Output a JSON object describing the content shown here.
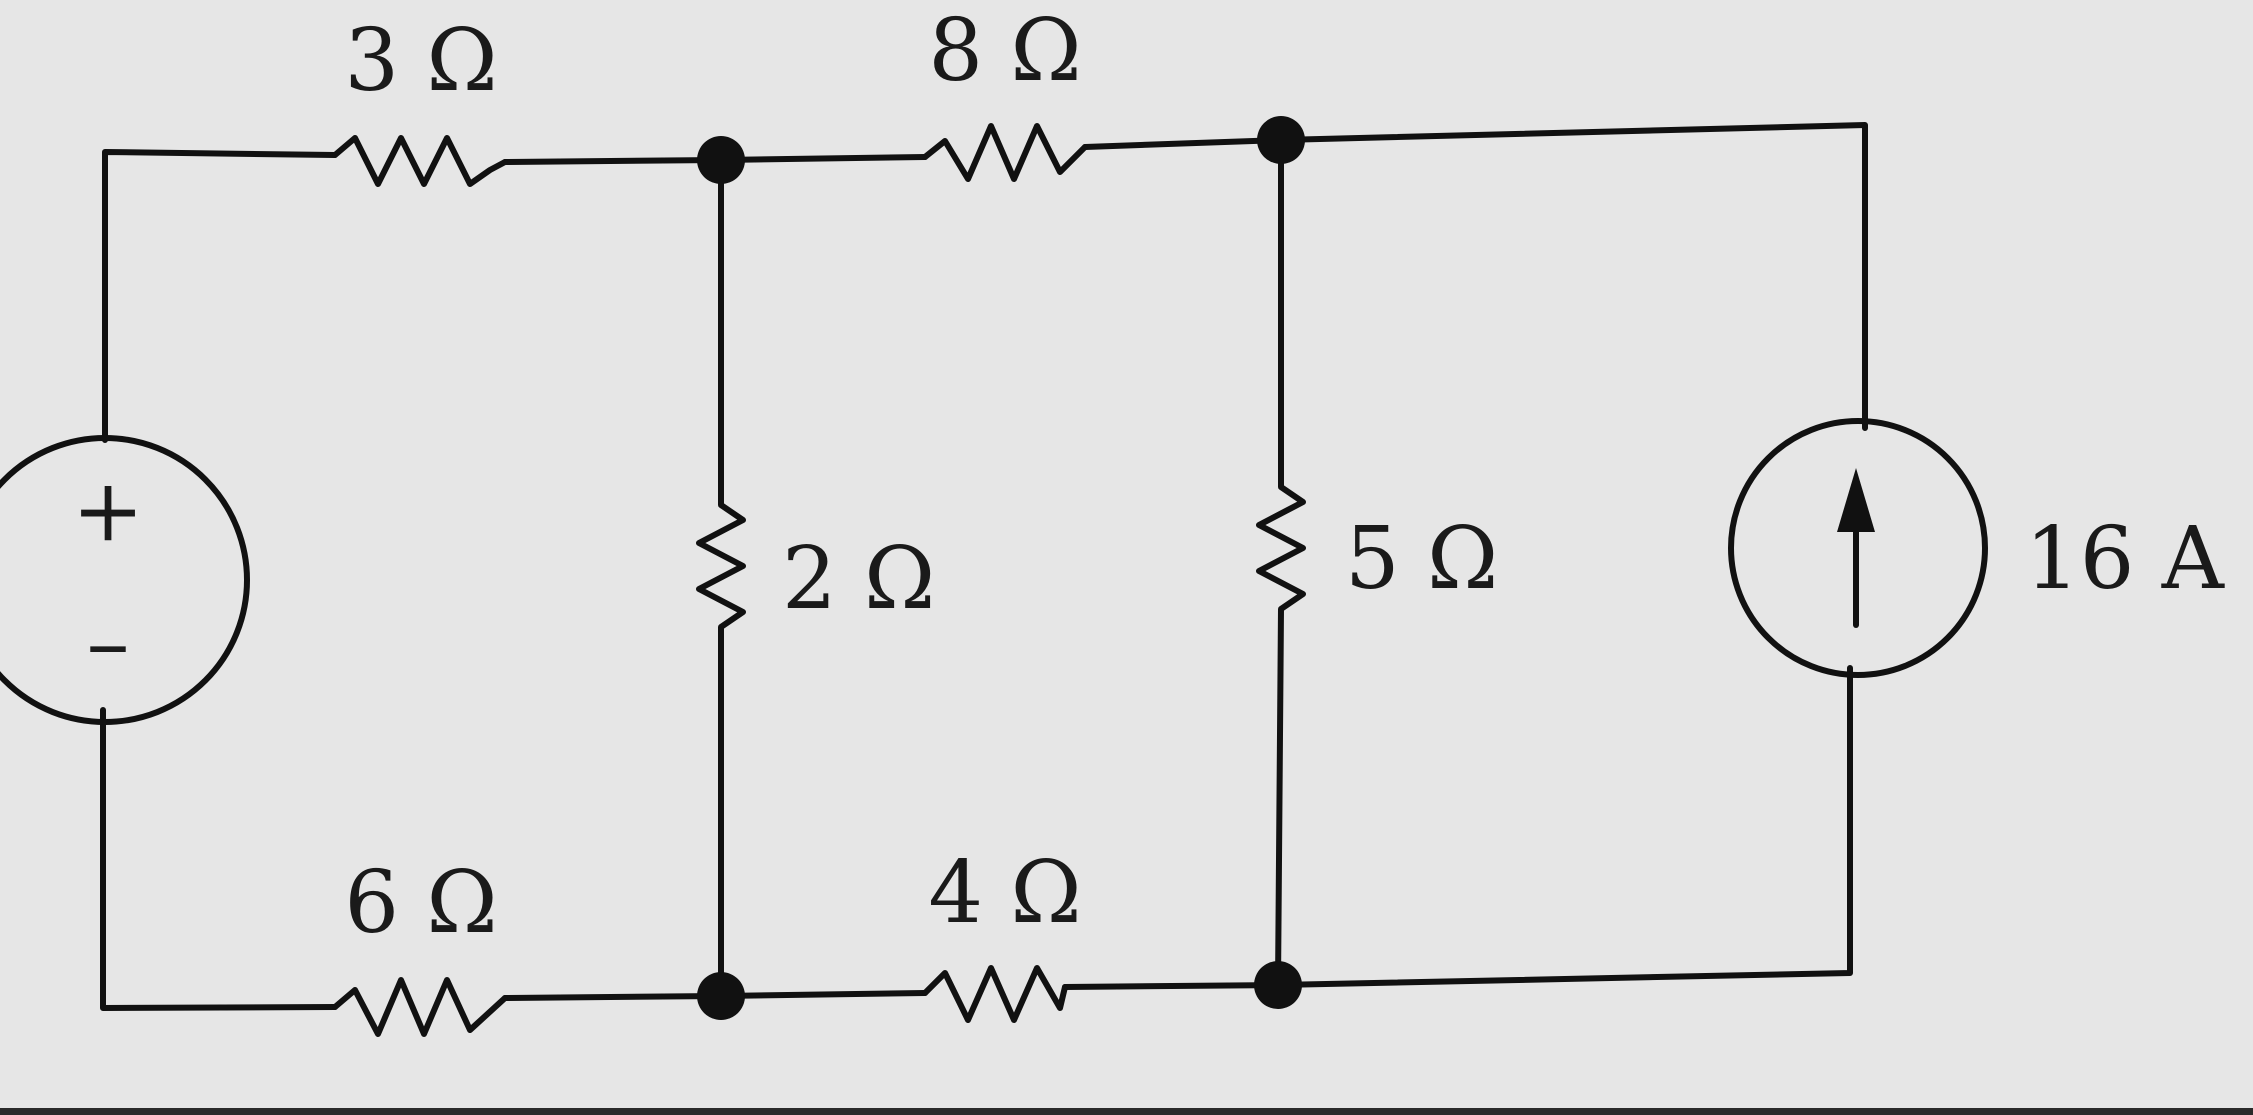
{
  "diagram": {
    "type": "circuit",
    "components": {
      "r_top_left": {
        "label": "3 Ω"
      },
      "r_top_mid": {
        "label": "8 Ω"
      },
      "r_center": {
        "label": "2 Ω"
      },
      "r_right_center": {
        "label": "5 Ω"
      },
      "r_bottom_left": {
        "label": "6 Ω"
      },
      "r_bottom_mid": {
        "label": "4 Ω"
      },
      "voltage_source": {
        "plus": "+",
        "minus": "–"
      },
      "current_source": {
        "label": "16 A"
      }
    }
  }
}
